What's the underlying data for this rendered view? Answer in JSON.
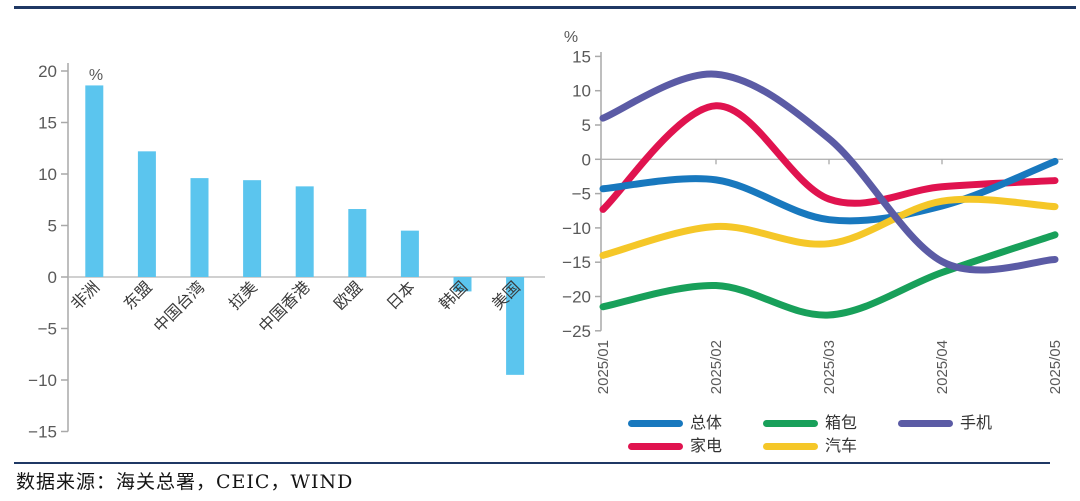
{
  "page": {
    "unit_label": "%",
    "source_note": "数据来源：海关总署，CEIC，WIND",
    "accent_rule_color": "#1F3864",
    "axis_color": "#A9A9A9",
    "zero_line_color": "#B5B5B5",
    "tick_label_color": "#595959",
    "category_label_color": "#3A3A3A"
  },
  "chart_data": [
    {
      "id": "exports-by-region",
      "type": "bar",
      "unit": "%",
      "categories": [
        "非洲",
        "东盟",
        "中国台湾",
        "拉美",
        "中国香港",
        "欧盟",
        "日本",
        "韩国",
        "美国"
      ],
      "values": [
        18.6,
        12.2,
        9.6,
        9.4,
        8.8,
        6.6,
        4.5,
        -1.4,
        -9.5
      ],
      "bar_color": "#5BC5EE",
      "ylim": [
        -15,
        20
      ],
      "yticks": [
        20,
        15,
        10,
        5,
        0,
        -5,
        -10,
        -15
      ],
      "grid": "zero-line-only"
    },
    {
      "id": "exports-by-category",
      "type": "line",
      "unit": "%",
      "x": [
        "2025/01",
        "2025/02",
        "2025/03",
        "2025/04",
        "2025/05"
      ],
      "series": [
        {
          "name": "总体",
          "color": "#1878BE",
          "values": [
            -4.3,
            -3.0,
            -8.8,
            -6.8,
            -0.3
          ]
        },
        {
          "name": "家电",
          "color": "#E0134F",
          "values": [
            -7.3,
            7.8,
            -5.8,
            -4.0,
            -3.1
          ]
        },
        {
          "name": "箱包",
          "color": "#18A05A",
          "values": [
            -21.5,
            -18.4,
            -22.7,
            -16.5,
            -11.0
          ]
        },
        {
          "name": "汽车",
          "color": "#F5C728",
          "values": [
            -14.0,
            -9.8,
            -12.3,
            -6.1,
            -6.9
          ]
        },
        {
          "name": "手机",
          "color": "#5B5BA5",
          "values": [
            6.0,
            12.4,
            3.0,
            -14.9,
            -14.6
          ]
        }
      ],
      "ylim": [
        -25,
        15
      ],
      "yticks": [
        15,
        10,
        5,
        0,
        -5,
        -10,
        -15,
        -20,
        -25
      ],
      "legend_order": [
        "总体",
        "家电",
        "箱包",
        "汽车",
        "手机"
      ],
      "legend_rows": 2,
      "draw_order": [
        "箱包",
        "家电",
        "总体",
        "汽车",
        "手机"
      ]
    }
  ]
}
